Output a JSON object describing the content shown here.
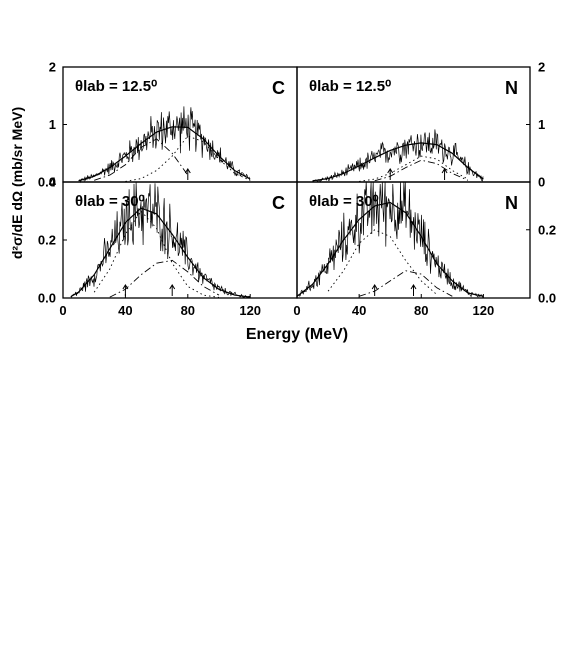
{
  "y_axis_label": "d²σ/dE dΩ (mb/sr MeV)",
  "x_axis_label": "Energy (MeV)",
  "chart_data": [
    {
      "type": "line",
      "panel": "top-left",
      "annotation": "θlab = 12.5⁰",
      "element": "C",
      "xlim": [
        0,
        150
      ],
      "ylim": [
        0,
        2
      ],
      "xticks": [],
      "yticks": [
        "0",
        "1",
        "2"
      ],
      "y_tick_side": "left",
      "series": [
        {
          "style": "solid-fit",
          "x": [
            10,
            20,
            30,
            40,
            50,
            60,
            70,
            80,
            90,
            100,
            110,
            120
          ],
          "y": [
            0.02,
            0.1,
            0.25,
            0.45,
            0.67,
            0.87,
            0.96,
            0.95,
            0.75,
            0.45,
            0.2,
            0.05
          ]
        },
        {
          "style": "dotted",
          "x": [
            40,
            50,
            60,
            70,
            80,
            90,
            100,
            110,
            120
          ],
          "y": [
            0.01,
            0.06,
            0.2,
            0.45,
            0.8,
            0.7,
            0.4,
            0.15,
            0.03
          ]
        },
        {
          "style": "dash-dot",
          "x": [
            20,
            30,
            40,
            50,
            60,
            70,
            80
          ],
          "y": [
            0.03,
            0.12,
            0.3,
            0.6,
            0.75,
            0.5,
            0.12
          ]
        }
      ],
      "arrows_x": [
        80
      ]
    },
    {
      "type": "line",
      "panel": "top-right",
      "annotation": "θlab = 12.5⁰",
      "element": "N",
      "xlim": [
        0,
        150
      ],
      "ylim": [
        0,
        2
      ],
      "xticks": [],
      "yticks": [
        "0",
        "1",
        "2"
      ],
      "y_tick_side": "right",
      "series": [
        {
          "style": "solid-fit",
          "x": [
            10,
            20,
            30,
            40,
            50,
            60,
            70,
            80,
            90,
            100,
            110,
            120
          ],
          "y": [
            0.02,
            0.06,
            0.15,
            0.28,
            0.42,
            0.55,
            0.64,
            0.68,
            0.65,
            0.5,
            0.25,
            0.05
          ]
        },
        {
          "style": "dotted",
          "x": [
            40,
            50,
            60,
            70,
            80,
            90,
            100,
            110
          ],
          "y": [
            0.01,
            0.05,
            0.15,
            0.3,
            0.45,
            0.4,
            0.2,
            0.05
          ]
        },
        {
          "style": "dash-dot",
          "x": [
            50,
            60,
            70,
            80,
            90,
            100,
            110
          ],
          "y": [
            0.02,
            0.1,
            0.25,
            0.38,
            0.32,
            0.15,
            0.03
          ]
        }
      ],
      "arrows_x": [
        60,
        95
      ]
    },
    {
      "type": "line",
      "panel": "bottom-left",
      "annotation": "θlab = 30⁰",
      "element": "C",
      "xlim": [
        0,
        150
      ],
      "ylim": [
        0,
        0.4
      ],
      "xticks": [
        "0",
        "40",
        "80",
        "120"
      ],
      "yticks": [
        "0.0",
        "0.2",
        "0.4"
      ],
      "y_tick_side": "left",
      "series": [
        {
          "style": "solid-fit",
          "x": [
            5,
            10,
            20,
            30,
            40,
            50,
            60,
            70,
            80,
            90,
            100,
            110,
            120
          ],
          "y": [
            0.005,
            0.02,
            0.08,
            0.17,
            0.26,
            0.31,
            0.29,
            0.22,
            0.14,
            0.07,
            0.03,
            0.01,
            0.003
          ]
        },
        {
          "style": "dotted",
          "x": [
            20,
            30,
            40,
            50,
            60,
            70,
            80,
            90,
            100
          ],
          "y": [
            0.02,
            0.1,
            0.22,
            0.3,
            0.24,
            0.12,
            0.04,
            0.01,
            0.002
          ]
        },
        {
          "style": "dash-dot",
          "x": [
            30,
            40,
            50,
            60,
            70,
            80,
            90,
            100
          ],
          "y": [
            0.003,
            0.03,
            0.08,
            0.12,
            0.13,
            0.09,
            0.04,
            0.01
          ]
        }
      ],
      "arrows_x": [
        40,
        70
      ]
    },
    {
      "type": "line",
      "panel": "bottom-right",
      "annotation": "θlab = 30⁰",
      "element": "N",
      "xlim": [
        0,
        150
      ],
      "ylim": [
        0,
        0.34
      ],
      "xticks": [
        "0",
        "40",
        "80",
        "120"
      ],
      "yticks": [
        "0.0",
        "0.2"
      ],
      "y_tick_side": "right",
      "series": [
        {
          "style": "solid-fit",
          "x": [
            0,
            10,
            20,
            30,
            40,
            50,
            60,
            70,
            80,
            90,
            100,
            110,
            120
          ],
          "y": [
            0.005,
            0.04,
            0.1,
            0.17,
            0.23,
            0.27,
            0.28,
            0.25,
            0.18,
            0.1,
            0.05,
            0.015,
            0.005
          ]
        },
        {
          "style": "dotted",
          "x": [
            20,
            30,
            40,
            50,
            60,
            70,
            80,
            90
          ],
          "y": [
            0.02,
            0.08,
            0.16,
            0.2,
            0.18,
            0.11,
            0.05,
            0.01
          ]
        },
        {
          "style": "dash-dot",
          "x": [
            40,
            50,
            60,
            70,
            80,
            90,
            100
          ],
          "y": [
            0.005,
            0.02,
            0.05,
            0.08,
            0.07,
            0.03,
            0.005
          ]
        }
      ],
      "arrows_x": [
        50,
        75
      ]
    }
  ]
}
